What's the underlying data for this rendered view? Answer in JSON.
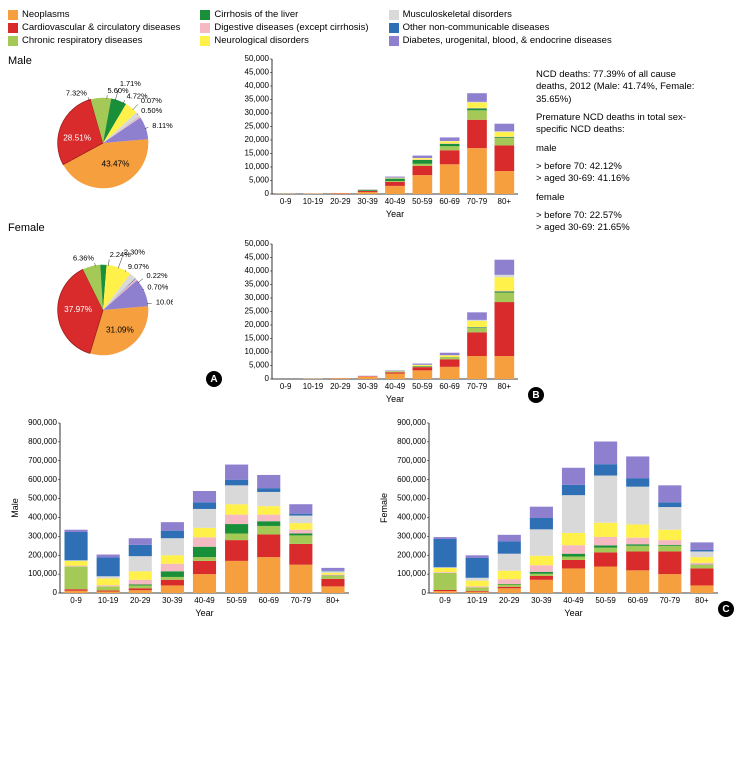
{
  "categories": [
    {
      "key": "neo",
      "label": "Neoplasms",
      "color": "#f59f3f"
    },
    {
      "key": "cvd",
      "label": "Cardiovascular & circulatory diseases",
      "color": "#d92b2b"
    },
    {
      "key": "crd",
      "label": "Chronic respiratory diseases",
      "color": "#a5c956"
    },
    {
      "key": "cir",
      "label": "Cirrhosis of the liver",
      "color": "#1a8f3a"
    },
    {
      "key": "dig",
      "label": "Digestive diseases (except cirrhosis)",
      "color": "#f5b9c1"
    },
    {
      "key": "neu",
      "label": "Neurological disorders",
      "color": "#fff04a"
    },
    {
      "key": "mus",
      "label": "Musculoskeletal disorders",
      "color": "#d9d9d9"
    },
    {
      "key": "oth",
      "label": "Other non-communicable diseases",
      "color": "#2f6fb5"
    },
    {
      "key": "dia",
      "label": "Diabetes, urogenital, blood, & endocrine diseases",
      "color": "#8f7fcf"
    }
  ],
  "legend_font": 9.5,
  "pie_male": {
    "title": "Male",
    "order": [
      "neo",
      "cvd",
      "crd",
      "cir",
      "neu",
      "mus",
      "oth",
      "dig",
      "dia"
    ],
    "slices": {
      "neo": 43.47,
      "cvd": 28.51,
      "crd": 7.32,
      "cir": 5.6,
      "neu": 4.72,
      "mus": 1.71,
      "oth": 0.07,
      "dig": 0.5,
      "dia": 8.11
    },
    "highlight": "cvd",
    "labels": [
      {
        "key": "neo",
        "text": "43.47%",
        "ang": 60,
        "r": 0.55,
        "size": 10
      },
      {
        "key": "cvd",
        "text": "28.51%",
        "ang": 190,
        "r": 0.58,
        "size": 10,
        "fill": "#ffffff"
      },
      {
        "key": "crd",
        "text": "7.32%",
        "ang": 252,
        "r": 1.15,
        "size": 9
      },
      {
        "key": "cir",
        "text": "5.60%",
        "ang": 275,
        "r": 1.15,
        "size": 9
      },
      {
        "key": "neu",
        "text": "4.72%",
        "ang": 297,
        "r": 1.15,
        "size": 9
      },
      {
        "key": "mus",
        "text": "1.71%",
        "ang": 286,
        "r": 1.35,
        "size": 9
      },
      {
        "key": "oth",
        "text": "0.07%",
        "ang": 312,
        "r": 1.25,
        "size": 9
      },
      {
        "key": "dig",
        "text": "0.50%",
        "ang": 320,
        "r": 1.1,
        "size": 9
      },
      {
        "key": "dia",
        "text": "8.11%",
        "ang": 341,
        "r": 1.15,
        "size": 9
      }
    ]
  },
  "pie_female": {
    "title": "Female",
    "order": [
      "neo",
      "cvd",
      "crd",
      "cir",
      "neu",
      "mus",
      "oth",
      "dig",
      "dia"
    ],
    "slices": {
      "neo": 31.09,
      "cvd": 37.97,
      "crd": 6.36,
      "cir": 2.24,
      "neu": 9.07,
      "mus": 2.3,
      "oth": 0.22,
      "dig": 0.7,
      "dia": 10.06
    },
    "highlight": "cvd",
    "labels": [
      {
        "key": "neo",
        "text": "31.09%",
        "ang": 50,
        "r": 0.58,
        "size": 10
      },
      {
        "key": "cvd",
        "text": "37.97%",
        "ang": 180,
        "r": 0.55,
        "size": 10,
        "fill": "#ffffff"
      },
      {
        "key": "crd",
        "text": "6.36%",
        "ang": 260,
        "r": 1.15,
        "size": 9
      },
      {
        "key": "cir",
        "text": "2.24%",
        "ang": 277,
        "r": 1.22,
        "size": 9
      },
      {
        "key": "neu",
        "text": "9.07%",
        "ang": 300,
        "r": 1.1,
        "size": 9
      },
      {
        "key": "mus",
        "text": "2.30%",
        "ang": 290,
        "r": 1.35,
        "size": 9
      },
      {
        "key": "oth",
        "text": "0.22%",
        "ang": 322,
        "r": 1.22,
        "size": 9
      },
      {
        "key": "dig",
        "text": "0.70%",
        "ang": 333,
        "r": 1.1,
        "size": 9
      },
      {
        "key": "dia",
        "text": "10.06%",
        "ang": 352,
        "r": 1.18,
        "size": 9
      }
    ]
  },
  "bars_B": {
    "x_labels": [
      "0-9",
      "10-19",
      "20-29",
      "30-39",
      "40-49",
      "50-59",
      "60-69",
      "70-79",
      "80+"
    ],
    "x_title": "Year",
    "y_max": 50000,
    "y_step": 5000,
    "order": [
      "neo",
      "cvd",
      "crd",
      "cir",
      "dig",
      "neu",
      "mus",
      "oth",
      "dia"
    ],
    "male": [
      {
        "neo": 80,
        "cvd": 50,
        "crd": 20,
        "cir": 0,
        "dig": 10,
        "neu": 20,
        "mus": 0,
        "oth": 30,
        "dia": 20
      },
      {
        "neo": 120,
        "cvd": 60,
        "crd": 20,
        "cir": 0,
        "dig": 10,
        "neu": 30,
        "mus": 0,
        "oth": 20,
        "dia": 20
      },
      {
        "neo": 200,
        "cvd": 120,
        "crd": 30,
        "cir": 40,
        "dig": 20,
        "neu": 40,
        "mus": 0,
        "oth": 20,
        "dia": 40
      },
      {
        "neo": 700,
        "cvd": 400,
        "crd": 60,
        "cir": 300,
        "dig": 30,
        "neu": 80,
        "mus": 10,
        "oth": 20,
        "dia": 120
      },
      {
        "neo": 3000,
        "cvd": 1500,
        "crd": 300,
        "cir": 900,
        "dig": 100,
        "neu": 200,
        "mus": 30,
        "oth": 20,
        "dia": 400
      },
      {
        "neo": 7000,
        "cvd": 3400,
        "crd": 800,
        "cir": 1400,
        "dig": 150,
        "neu": 500,
        "mus": 60,
        "oth": 20,
        "dia": 900
      },
      {
        "neo": 11000,
        "cvd": 5200,
        "crd": 1500,
        "cir": 900,
        "dig": 150,
        "neu": 800,
        "mus": 80,
        "oth": 20,
        "dia": 1300
      },
      {
        "neo": 17000,
        "cvd": 10500,
        "crd": 3500,
        "cir": 700,
        "dig": 200,
        "neu": 2000,
        "mus": 200,
        "oth": 30,
        "dia": 3200
      },
      {
        "neo": 8500,
        "cvd": 9500,
        "crd": 2800,
        "cir": 300,
        "dig": 150,
        "neu": 1700,
        "mus": 250,
        "oth": 30,
        "dia": 2800
      }
    ],
    "female": [
      {
        "neo": 60,
        "cvd": 40,
        "crd": 20,
        "cir": 0,
        "dig": 10,
        "neu": 20,
        "mus": 0,
        "oth": 30,
        "dia": 20
      },
      {
        "neo": 100,
        "cvd": 40,
        "crd": 15,
        "cir": 0,
        "dig": 10,
        "neu": 20,
        "mus": 0,
        "oth": 20,
        "dia": 20
      },
      {
        "neo": 250,
        "cvd": 80,
        "crd": 20,
        "cir": 20,
        "dig": 15,
        "neu": 30,
        "mus": 5,
        "oth": 20,
        "dia": 30
      },
      {
        "neo": 800,
        "cvd": 200,
        "crd": 40,
        "cir": 60,
        "dig": 20,
        "neu": 60,
        "mus": 10,
        "oth": 20,
        "dia": 80
      },
      {
        "neo": 2000,
        "cvd": 500,
        "crd": 100,
        "cir": 120,
        "dig": 40,
        "neu": 150,
        "mus": 20,
        "oth": 20,
        "dia": 200
      },
      {
        "neo": 3200,
        "cvd": 1200,
        "crd": 250,
        "cir": 150,
        "dig": 60,
        "neu": 350,
        "mus": 40,
        "oth": 20,
        "dia": 450
      },
      {
        "neo": 4500,
        "cvd": 2800,
        "crd": 500,
        "cir": 150,
        "dig": 80,
        "neu": 700,
        "mus": 80,
        "oth": 20,
        "dia": 900
      },
      {
        "neo": 8500,
        "cvd": 8800,
        "crd": 1600,
        "cir": 250,
        "dig": 150,
        "neu": 2200,
        "mus": 350,
        "oth": 40,
        "dia": 2800
      },
      {
        "neo": 8500,
        "cvd": 20000,
        "crd": 3500,
        "cir": 400,
        "dig": 300,
        "neu": 5000,
        "mus": 900,
        "oth": 80,
        "dia": 5500
      }
    ]
  },
  "bars_C": {
    "x_labels": [
      "0-9",
      "10-19",
      "20-29",
      "30-39",
      "40-49",
      "50-59",
      "60-69",
      "70-79",
      "80+"
    ],
    "x_title": "Year",
    "y_max": 900000,
    "y_step": 100000,
    "order": [
      "neo",
      "cvd",
      "crd",
      "cir",
      "dig",
      "neu",
      "mus",
      "oth",
      "dia"
    ],
    "male": [
      {
        "neo": 12000,
        "cvd": 8000,
        "crd": 120000,
        "cir": 1000,
        "dig": 4000,
        "neu": 25000,
        "mus": 3000,
        "oth": 150000,
        "dia": 12000
      },
      {
        "neo": 8000,
        "cvd": 5000,
        "crd": 22000,
        "cir": 500,
        "dig": 6000,
        "neu": 35000,
        "mus": 12000,
        "oth": 100000,
        "dia": 15000
      },
      {
        "neo": 15000,
        "cvd": 10000,
        "crd": 15000,
        "cir": 5000,
        "dig": 25000,
        "neu": 45000,
        "mus": 80000,
        "oth": 60000,
        "dia": 35000
      },
      {
        "neo": 40000,
        "cvd": 30000,
        "crd": 15000,
        "cir": 30000,
        "dig": 40000,
        "neu": 45000,
        "mus": 90000,
        "oth": 40000,
        "dia": 45000
      },
      {
        "neo": 100000,
        "cvd": 70000,
        "crd": 20000,
        "cir": 55000,
        "dig": 50000,
        "neu": 50000,
        "mus": 100000,
        "oth": 35000,
        "dia": 60000
      },
      {
        "neo": 170000,
        "cvd": 110000,
        "crd": 35000,
        "cir": 50000,
        "dig": 50000,
        "neu": 55000,
        "mus": 100000,
        "oth": 30000,
        "dia": 80000
      },
      {
        "neo": 190000,
        "cvd": 120000,
        "crd": 45000,
        "cir": 25000,
        "dig": 35000,
        "neu": 45000,
        "mus": 75000,
        "oth": 20000,
        "dia": 70000
      },
      {
        "neo": 150000,
        "cvd": 110000,
        "crd": 45000,
        "cir": 10000,
        "dig": 20000,
        "neu": 35000,
        "mus": 40000,
        "oth": 10000,
        "dia": 50000
      },
      {
        "neo": 35000,
        "cvd": 40000,
        "crd": 15000,
        "cir": 2000,
        "dig": 5000,
        "neu": 10000,
        "mus": 8000,
        "oth": 3000,
        "dia": 15000
      }
    ],
    "female": [
      {
        "neo": 10000,
        "cvd": 6000,
        "crd": 90000,
        "cir": 1000,
        "dig": 4000,
        "neu": 22000,
        "mus": 3000,
        "oth": 150000,
        "dia": 10000
      },
      {
        "neo": 7000,
        "cvd": 4000,
        "crd": 18000,
        "cir": 500,
        "dig": 6000,
        "neu": 30000,
        "mus": 15000,
        "oth": 105000,
        "dia": 14000
      },
      {
        "neo": 25000,
        "cvd": 8000,
        "crd": 12000,
        "cir": 3000,
        "dig": 25000,
        "neu": 45000,
        "mus": 90000,
        "oth": 65000,
        "dia": 35000
      },
      {
        "neo": 70000,
        "cvd": 20000,
        "crd": 12000,
        "cir": 10000,
        "dig": 35000,
        "neu": 50000,
        "mus": 140000,
        "oth": 60000,
        "dia": 60000
      },
      {
        "neo": 130000,
        "cvd": 45000,
        "crd": 18000,
        "cir": 15000,
        "dig": 45000,
        "neu": 65000,
        "mus": 200000,
        "oth": 55000,
        "dia": 90000
      },
      {
        "neo": 140000,
        "cvd": 75000,
        "crd": 25000,
        "cir": 12000,
        "dig": 45000,
        "neu": 75000,
        "mus": 250000,
        "oth": 60000,
        "dia": 120000
      },
      {
        "neo": 120000,
        "cvd": 100000,
        "crd": 30000,
        "cir": 8000,
        "dig": 35000,
        "neu": 70000,
        "mus": 200000,
        "oth": 45000,
        "dia": 115000
      },
      {
        "neo": 100000,
        "cvd": 120000,
        "crd": 30000,
        "cir": 5000,
        "dig": 25000,
        "neu": 55000,
        "mus": 120000,
        "oth": 25000,
        "dia": 90000
      },
      {
        "neo": 40000,
        "cvd": 90000,
        "crd": 18000,
        "cir": 2000,
        "dig": 10000,
        "neu": 30000,
        "mus": 30000,
        "oth": 8000,
        "dia": 40000
      }
    ],
    "y_title_male": "Male",
    "y_title_female": "Female"
  },
  "annotation": {
    "line1": "NCD deaths: 77.39% of all cause deaths, 2012 (Male: 41.74%, Female: 35.65%)",
    "line2": "Premature NCD deaths in total sex-specific NCD deaths:",
    "m1": "male",
    "m2": "> before 70: 42.12%",
    "m3": "> aged 30-69: 41.16%",
    "f1": "female",
    "f2": "> before 70: 22.57%",
    "f3": "> aged 30-69: 21.65%"
  },
  "badges": {
    "A": "A",
    "B": "B",
    "C": "C"
  }
}
